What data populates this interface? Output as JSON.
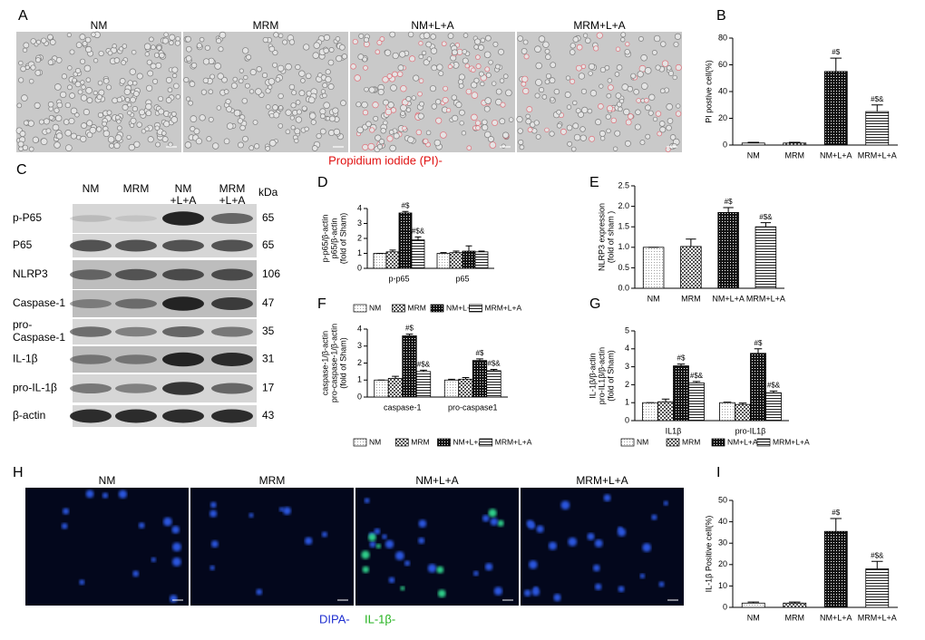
{
  "panel_labels": [
    "A",
    "B",
    "C",
    "D",
    "E",
    "F",
    "G",
    "H",
    "I"
  ],
  "panel_a": {
    "conditions": [
      "NM",
      "MRM",
      "NM+L+A",
      "MRM+L+A"
    ],
    "caption": "Propidium iodide (PI)-"
  },
  "panel_c": {
    "conditions": [
      [
        "NM"
      ],
      [
        "MRM"
      ],
      [
        "NM",
        "+L+A"
      ],
      [
        "MRM",
        "+L+A"
      ]
    ],
    "unit": "kDa",
    "bands": [
      {
        "label": [
          "p-P65"
        ],
        "kda": 65
      },
      {
        "label": [
          "P65"
        ],
        "kda": 65
      },
      {
        "label": [
          "NLRP3"
        ],
        "kda": 106
      },
      {
        "label": [
          "Caspase-1"
        ],
        "kda": 47
      },
      {
        "label": [
          "pro-",
          "Caspase-1"
        ],
        "kda": 35
      },
      {
        "label": [
          "IL-1β"
        ],
        "kda": 31
      },
      {
        "label": [
          "pro-IL-1β"
        ],
        "kda": 17
      },
      {
        "label": [
          "β-actin"
        ],
        "kda": 43
      }
    ]
  },
  "panel_h": {
    "conditions": [
      "NM",
      "MRM",
      "NM+L+A",
      "MRM+L+A"
    ],
    "caption": [
      {
        "text": "DIPA-",
        "color": "#1f2fd0"
      },
      {
        "text": "IL-1β-",
        "color": "#22b21c"
      }
    ]
  },
  "chart_data": [
    {
      "type": "bar",
      "ylabel": [
        "PI postive cell(%)"
      ],
      "categories": [
        "NM",
        "MRM",
        "NM+L+A",
        "MRM+L+A"
      ],
      "values": [
        1.5,
        1.5,
        55,
        25
      ],
      "errors": [
        0.5,
        0.5,
        10,
        5
      ],
      "significance": [
        null,
        null,
        "#$",
        "#$&"
      ],
      "patterns": [
        "dots",
        "check",
        "dense",
        "hlines"
      ],
      "color": "#000000",
      "ylim": [
        0,
        80
      ],
      "yticks": [
        0,
        20,
        40,
        60,
        80
      ]
    },
    {
      "type": "grouped-bar",
      "ylabel": [
        "p-p65/β-actin",
        "p65/β-actin",
        "(fold of Sham)"
      ],
      "categories": [
        "p-p65",
        "p65"
      ],
      "series": [
        {
          "name": "NM",
          "pattern": "dots",
          "values": [
            1,
            1
          ],
          "errors": [
            0,
            0.05
          ],
          "significance": [
            null,
            null
          ]
        },
        {
          "name": "MRM",
          "pattern": "check",
          "values": [
            1.1,
            1.05
          ],
          "errors": [
            0.12,
            0.1
          ],
          "significance": [
            null,
            null
          ]
        },
        {
          "name": "NM+L+A",
          "pattern": "dense",
          "values": [
            3.7,
            1.15
          ],
          "errors": [
            0.1,
            0.35
          ],
          "significance": [
            "#$",
            null
          ]
        },
        {
          "name": "MRM+L+A",
          "pattern": "hlines",
          "values": [
            1.9,
            1.1
          ],
          "errors": [
            0.2,
            0.05
          ],
          "significance": [
            "#$&",
            null
          ]
        }
      ],
      "color": "#000000",
      "ylim": [
        0,
        4
      ],
      "yticks": [
        0,
        1,
        2,
        3,
        4
      ]
    },
    {
      "type": "bar",
      "ylabel": [
        "NLRP3  expression",
        "(fold of sham )"
      ],
      "categories": [
        "NM",
        "MRM",
        "NM+L+A",
        "MRM+L+A"
      ],
      "values": [
        1,
        1.02,
        1.85,
        1.5
      ],
      "errors": [
        0,
        0.18,
        0.12,
        0.1
      ],
      "significance": [
        null,
        null,
        "#$",
        "#$&"
      ],
      "patterns": [
        "dots",
        "check",
        "dense",
        "hlines"
      ],
      "color": "#000000",
      "ylim": [
        0,
        2.5
      ],
      "yticks": [
        {
          "value": 0,
          "label": "0.0"
        },
        {
          "value": 0.5,
          "label": "0.5"
        },
        {
          "value": 1,
          "label": "1.0"
        },
        {
          "value": 1.5,
          "label": "1.5"
        },
        {
          "value": 2,
          "label": "2.0"
        },
        {
          "value": 2.5,
          "label": "2.5"
        }
      ]
    },
    {
      "type": "grouped-bar",
      "ylabel": [
        "caspase-1/β-actin",
        "pro-caspase-1/β-actin",
        "(fold of Sham)"
      ],
      "categories": [
        "caspase-1",
        "pro-caspase1"
      ],
      "series": [
        {
          "name": "NM",
          "pattern": "dots",
          "values": [
            1,
            1
          ],
          "errors": [
            0,
            0.05
          ],
          "significance": [
            null,
            null
          ]
        },
        {
          "name": "MRM",
          "pattern": "check",
          "values": [
            1.1,
            1.05
          ],
          "errors": [
            0.12,
            0.1
          ],
          "significance": [
            null,
            null
          ]
        },
        {
          "name": "NM+L+A",
          "pattern": "dense",
          "values": [
            3.6,
            2.15
          ],
          "errors": [
            0.1,
            0.1
          ],
          "significance": [
            "#$",
            "#$"
          ]
        },
        {
          "name": "MRM+L+A",
          "pattern": "hlines",
          "values": [
            1.5,
            1.55
          ],
          "errors": [
            0.08,
            0.08
          ],
          "significance": [
            "#$&",
            "#$&"
          ]
        }
      ],
      "color": "#000000",
      "ylim": [
        0,
        4
      ],
      "yticks": [
        0,
        1,
        2,
        3,
        4
      ]
    },
    {
      "type": "grouped-bar",
      "ylabel": [
        "IL-1β/β-actin",
        "pro-IL1β/β-actin",
        "(fold of Sham)"
      ],
      "categories": [
        "IL1β",
        "pro-IL1β"
      ],
      "series": [
        {
          "name": "NM",
          "pattern": "dots",
          "values": [
            1,
            1
          ],
          "errors": [
            0,
            0.03
          ],
          "significance": [
            null,
            null
          ]
        },
        {
          "name": "MRM",
          "pattern": "check",
          "values": [
            1.05,
            0.9
          ],
          "errors": [
            0.15,
            0.08
          ],
          "significance": [
            null,
            null
          ]
        },
        {
          "name": "NM+L+A",
          "pattern": "dense",
          "values": [
            3.05,
            3.75
          ],
          "errors": [
            0.1,
            0.25
          ],
          "significance": [
            "#$",
            "#$"
          ]
        },
        {
          "name": "MRM+L+A",
          "pattern": "hlines",
          "values": [
            2.1,
            1.55
          ],
          "errors": [
            0.08,
            0.1
          ],
          "significance": [
            "#$&",
            "#$&"
          ]
        }
      ],
      "color": "#000000",
      "ylim": [
        0,
        5
      ],
      "yticks": [
        0,
        1,
        2,
        3,
        4,
        5
      ]
    },
    {
      "type": "bar",
      "ylabel": [
        "IL-1β Positive cell(%)"
      ],
      "categories": [
        "NM",
        "MRM",
        "NM+L+A",
        "MRM+L+A"
      ],
      "values": [
        2,
        2,
        35.5,
        18
      ],
      "errors": [
        0.5,
        0.5,
        6,
        3.5
      ],
      "significance": [
        null,
        null,
        "#$",
        "#$&"
      ],
      "patterns": [
        "dots",
        "check",
        "dense",
        "hlines"
      ],
      "color": "#000000",
      "ylim": [
        0,
        50
      ],
      "yticks": [
        0,
        10,
        20,
        30,
        40,
        50
      ]
    }
  ]
}
